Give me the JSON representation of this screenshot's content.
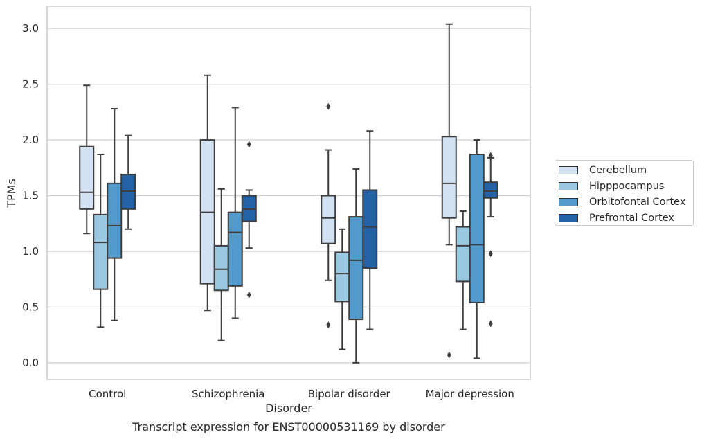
{
  "chart_data": {
    "type": "box",
    "title": "Transcript expression for ENST00000531169 by disorder",
    "xlabel": "Disorder",
    "ylabel": "TPMs",
    "ylim": [
      -0.15,
      3.2
    ],
    "yticks": [
      0.0,
      0.5,
      1.0,
      1.5,
      2.0,
      2.5,
      3.0
    ],
    "ytick_labels": [
      "0.0",
      "0.5",
      "1.0",
      "1.5",
      "2.0",
      "2.5",
      "3.0"
    ],
    "grid": true,
    "legend_position": "right",
    "categories": [
      "Control",
      "Schizophrenia",
      "Bipolar disorder",
      "Major depression"
    ],
    "series": [
      {
        "name": "Cerebellum",
        "color": "#d2e2f3",
        "boxes": [
          {
            "whislo": 1.16,
            "q1": 1.38,
            "med": 1.53,
            "q3": 1.94,
            "whishi": 2.49,
            "fliers": []
          },
          {
            "whislo": 0.47,
            "q1": 0.71,
            "med": 1.35,
            "q3": 2.0,
            "whishi": 2.58,
            "fliers": []
          },
          {
            "whislo": 0.74,
            "q1": 1.07,
            "med": 1.3,
            "q3": 1.5,
            "whishi": 1.91,
            "fliers": [
              0.34,
              2.3
            ]
          },
          {
            "whislo": 1.06,
            "q1": 1.3,
            "med": 1.61,
            "q3": 2.03,
            "whishi": 3.04,
            "fliers": [
              0.07
            ]
          }
        ]
      },
      {
        "name": "Hipppocampus",
        "color": "#9ac8e0",
        "boxes": [
          {
            "whislo": 0.32,
            "q1": 0.66,
            "med": 1.08,
            "q3": 1.33,
            "whishi": 1.87,
            "fliers": []
          },
          {
            "whislo": 0.2,
            "q1": 0.65,
            "med": 0.84,
            "q3": 1.05,
            "whishi": 1.56,
            "fliers": []
          },
          {
            "whislo": 0.12,
            "q1": 0.55,
            "med": 0.8,
            "q3": 0.99,
            "whishi": 1.2,
            "fliers": []
          },
          {
            "whislo": 0.3,
            "q1": 0.73,
            "med": 1.05,
            "q3": 1.22,
            "whishi": 1.36,
            "fliers": []
          }
        ]
      },
      {
        "name": "Orbitofontal Cortex",
        "color": "#519acb",
        "boxes": [
          {
            "whislo": 0.38,
            "q1": 0.94,
            "med": 1.23,
            "q3": 1.61,
            "whishi": 2.28,
            "fliers": []
          },
          {
            "whislo": 0.4,
            "q1": 0.69,
            "med": 1.17,
            "q3": 1.35,
            "whishi": 2.29,
            "fliers": []
          },
          {
            "whislo": 0.0,
            "q1": 0.39,
            "med": 0.92,
            "q3": 1.31,
            "whishi": 1.74,
            "fliers": []
          },
          {
            "whislo": 0.04,
            "q1": 0.54,
            "med": 1.06,
            "q3": 1.87,
            "whishi": 2.0,
            "fliers": []
          }
        ]
      },
      {
        "name": "Prefrontal Cortex",
        "color": "#2362a6",
        "boxes": [
          {
            "whislo": 1.2,
            "q1": 1.38,
            "med": 1.54,
            "q3": 1.69,
            "whishi": 2.04,
            "fliers": []
          },
          {
            "whislo": 1.03,
            "q1": 1.27,
            "med": 1.38,
            "q3": 1.5,
            "whishi": 1.55,
            "fliers": [
              0.61,
              1.96
            ]
          },
          {
            "whislo": 0.3,
            "q1": 0.85,
            "med": 1.22,
            "q3": 1.55,
            "whishi": 2.08,
            "fliers": []
          },
          {
            "whislo": 1.31,
            "q1": 1.48,
            "med": 1.54,
            "q3": 1.62,
            "whishi": 1.84,
            "fliers": [
              0.35,
              0.98,
              1.86
            ]
          }
        ]
      }
    ]
  }
}
